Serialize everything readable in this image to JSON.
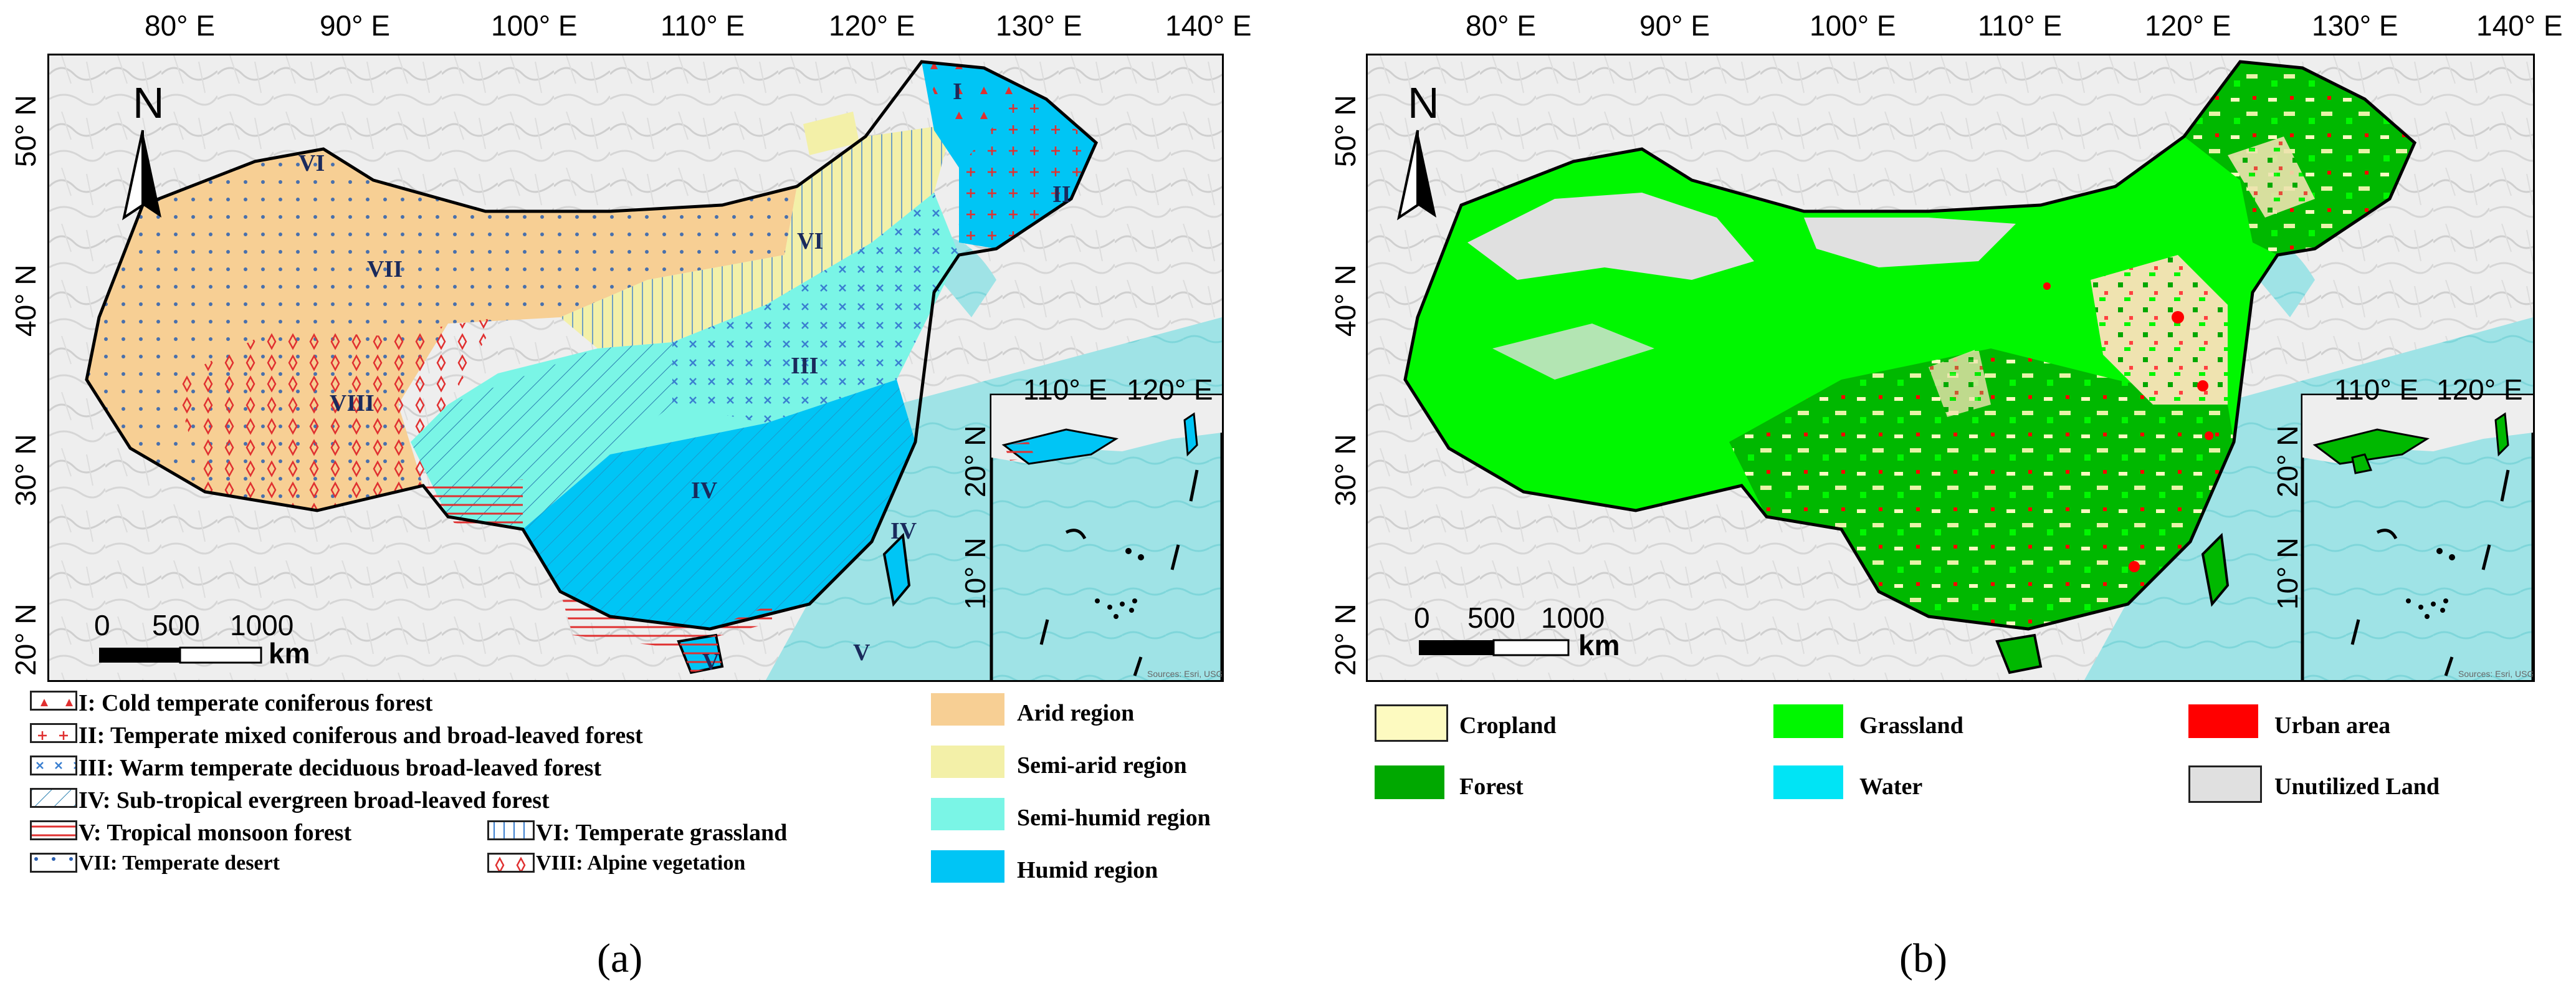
{
  "figure": {
    "panel_a": {
      "lon_ticks": [
        "80° E",
        "90° E",
        "100° E",
        "110° E",
        "120° E",
        "130° E",
        "140° E"
      ],
      "lat_ticks": [
        "50° N",
        "40° N",
        "30° N",
        "20° N"
      ],
      "north_label": "N",
      "scale": {
        "zero": "0",
        "mid": "500",
        "max": "1000",
        "unit": "km"
      },
      "zone_labels": [
        "I",
        "II",
        "III",
        "IV",
        "V",
        "VI",
        "VII",
        "VIII",
        "VI",
        "IV",
        "V"
      ],
      "inset": {
        "lon_ticks": [
          "110° E",
          "120° E"
        ],
        "lat_ticks": [
          "20° N",
          "10° N"
        ],
        "attribution": "Sources: Esri, USGS, NOAA"
      },
      "vegetation_legend": [
        {
          "label": "I: Cold temperate coniferous forest",
          "pattern": "triangles",
          "color": "#e03030"
        },
        {
          "label": "II: Temperate mixed coniferous and broad-leaved forest",
          "pattern": "crosses",
          "color": "#e03030"
        },
        {
          "label": "III: Warm temperate deciduous broad-leaved forest",
          "pattern": "x",
          "color": "#3a7fd0"
        },
        {
          "label": "IV: Sub-tropical evergreen broad-leaved forest",
          "pattern": "diagonal",
          "color": "#3a7fd0"
        },
        {
          "label": "V: Tropical monsoon forest",
          "pattern": "horizontal",
          "color": "#e03030"
        },
        {
          "label": "VI: Temperate grassland",
          "pattern": "vertical",
          "color": "#3a7fd0"
        },
        {
          "label": "VII: Temperate desert",
          "pattern": "dots",
          "color": "#2a5fb0"
        },
        {
          "label": "VIII: Alpine vegetation",
          "pattern": "diamonds",
          "color": "#e03030"
        }
      ],
      "climate_legend": [
        {
          "label": "Arid region",
          "color": "#f7cf94"
        },
        {
          "label": "Semi-arid region",
          "color": "#f3f0a8"
        },
        {
          "label": "Semi-humid region",
          "color": "#7af5e6"
        },
        {
          "label": "Humid region",
          "color": "#00c5f5"
        }
      ],
      "caption": "(a)"
    },
    "panel_b": {
      "lon_ticks": [
        "80° E",
        "90° E",
        "100° E",
        "110° E",
        "120° E",
        "130° E",
        "140° E"
      ],
      "lat_ticks": [
        "50° N",
        "40° N",
        "30° N",
        "20° N"
      ],
      "north_label": "N",
      "scale": {
        "zero": "0",
        "mid": "500",
        "max": "1000",
        "unit": "km"
      },
      "inset": {
        "lon_ticks": [
          "110° E",
          "120° E"
        ],
        "lat_ticks": [
          "20° N",
          "10° N"
        ],
        "attribution": "Sources: Esri, USGS, NOAA"
      },
      "landuse_legend": [
        {
          "label": "Cropland",
          "color": "#fdfac0"
        },
        {
          "label": "Grassland",
          "color": "#00f700"
        },
        {
          "label": "Urban area",
          "color": "#ff0000"
        },
        {
          "label": "Forest",
          "color": "#00a800"
        },
        {
          "label": "Water",
          "color": "#00e4f5"
        },
        {
          "label": "Unutilized Land",
          "color": "#e0e0e0"
        }
      ],
      "caption": "(b)"
    }
  }
}
